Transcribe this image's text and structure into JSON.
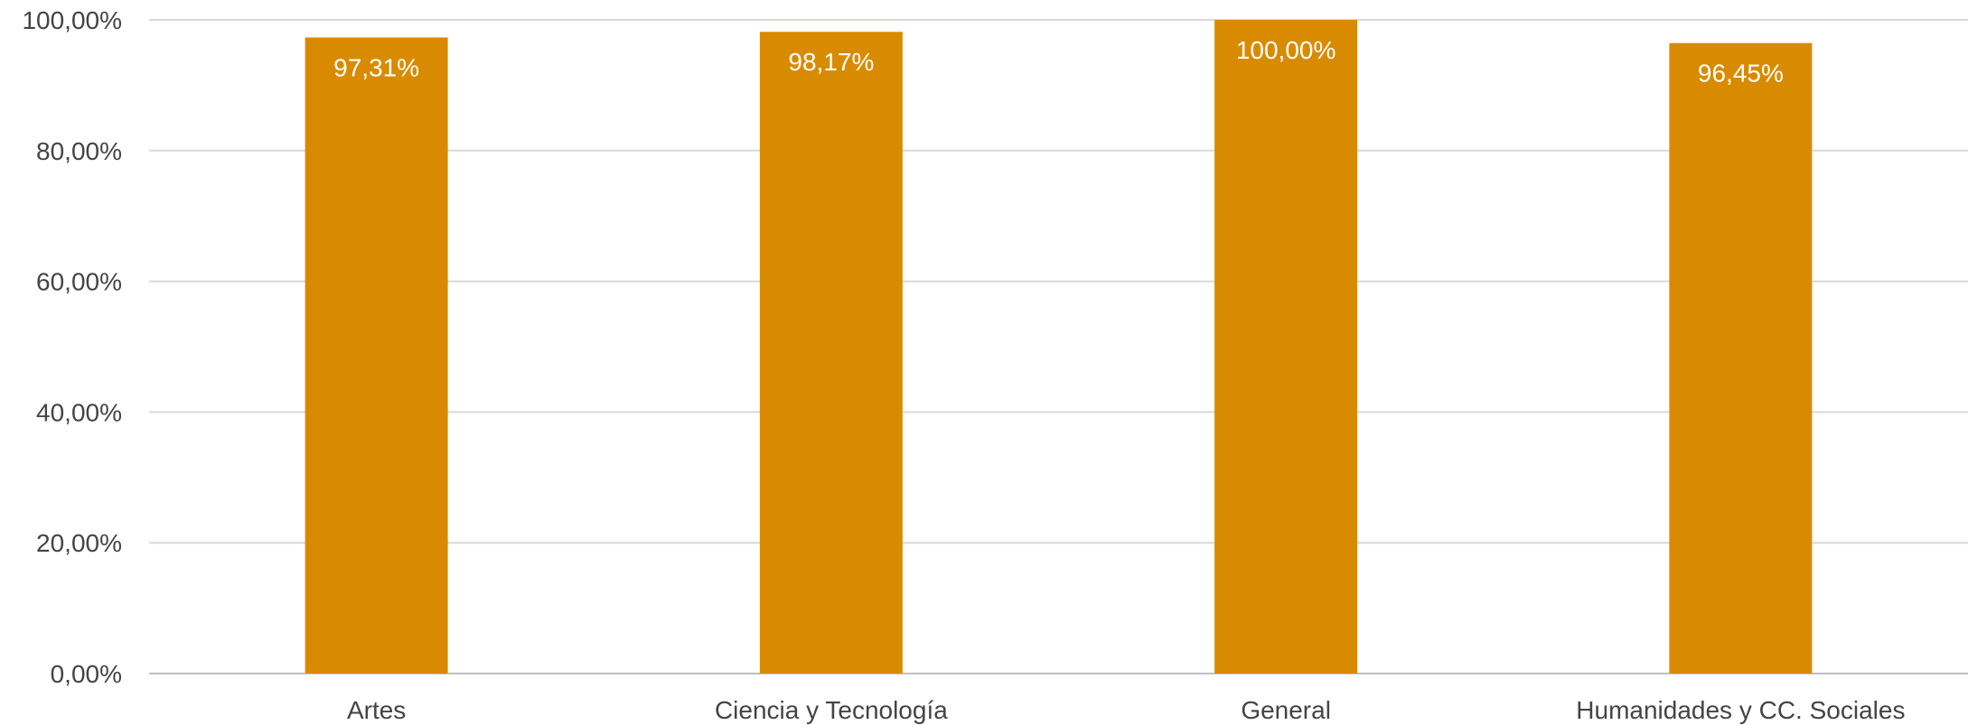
{
  "chart_data": {
    "type": "bar",
    "categories": [
      "Artes",
      "Ciencia y Tecnología",
      "General",
      "Humanidades y CC. Sociales"
    ],
    "values": [
      97.31,
      98.17,
      100.0,
      96.45
    ],
    "data_labels": [
      "97,31%",
      "98,17%",
      "100,00%",
      "96,45%"
    ],
    "yticks": [
      0,
      20,
      40,
      60,
      80,
      100
    ],
    "ytick_labels": [
      "0,00%",
      "20,00%",
      "40,00%",
      "60,00%",
      "80,00%",
      "100,00%"
    ],
    "ylim": [
      0,
      100
    ],
    "title": "",
    "xlabel": "",
    "ylabel": "",
    "grid": true,
    "legend": "none",
    "colors": {
      "bar": "#d98b00",
      "grid": "#d9d9d9",
      "axis": "#bfbfbf",
      "tick_text": "#444444",
      "label_text": "#ffffff"
    }
  }
}
